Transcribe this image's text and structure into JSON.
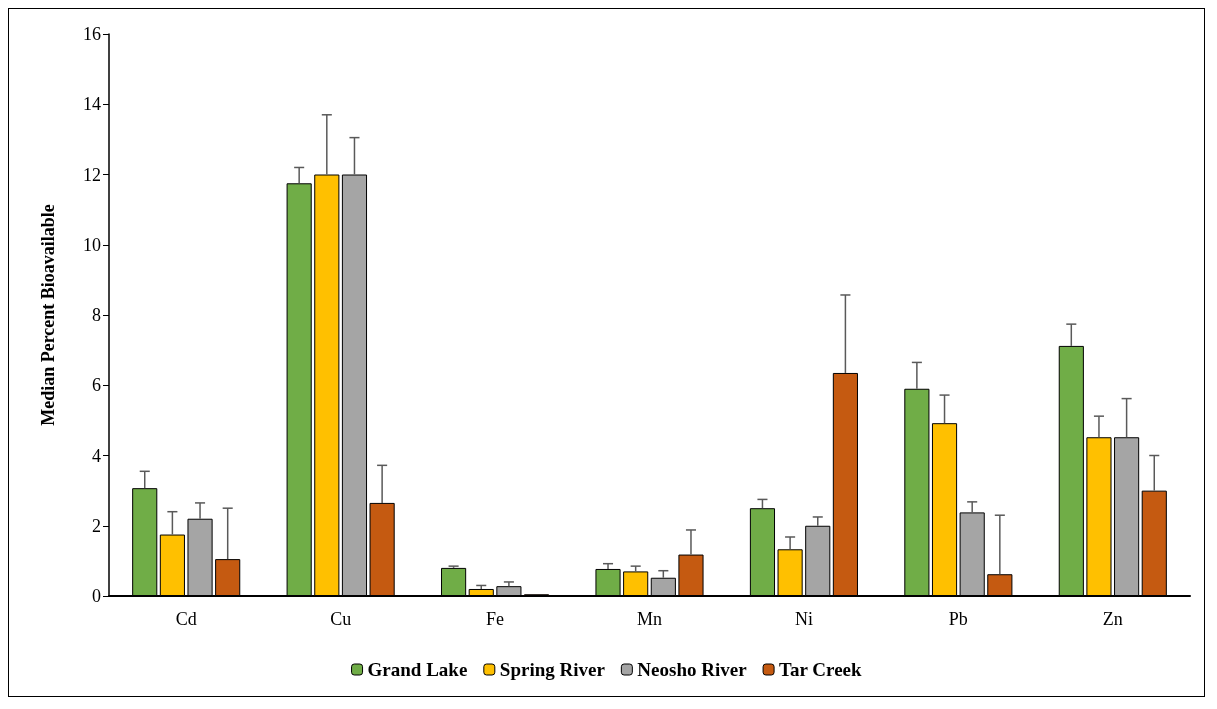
{
  "chart_data": {
    "type": "bar",
    "ylabel": "Median Percent Bioavailable",
    "categories": [
      "Cd",
      "Cu",
      "Fe",
      "Mn",
      "Ni",
      "Pb",
      "Zn"
    ],
    "ylim": [
      0,
      16
    ],
    "yticks": [
      0,
      2,
      4,
      6,
      8,
      10,
      12,
      14,
      16
    ],
    "grid": false,
    "legend": "bottom",
    "series": [
      {
        "name": "Grand Lake",
        "color": "#70ad47",
        "values": [
          3.07,
          11.75,
          0.8,
          0.77,
          2.5,
          5.9,
          7.12
        ],
        "errors": [
          [
            3.07,
            3.55
          ],
          [
            11.75,
            12.2
          ],
          [
            0.8,
            0.85
          ],
          [
            0.77,
            0.92
          ],
          [
            2.5,
            2.75
          ],
          [
            5.9,
            6.65
          ],
          [
            7.12,
            7.74
          ]
        ]
      },
      {
        "name": "Spring River",
        "color": "#ffc000",
        "values": [
          1.75,
          12.0,
          0.2,
          0.7,
          1.33,
          4.92,
          4.52
        ],
        "errors": [
          [
            1.75,
            2.4
          ],
          [
            12.0,
            13.7
          ],
          [
            0.2,
            0.3
          ],
          [
            0.7,
            0.85
          ],
          [
            1.33,
            1.68
          ],
          [
            4.92,
            5.72
          ],
          [
            4.52,
            5.12
          ]
        ]
      },
      {
        "name": "Neosho River",
        "color": "#a5a5a5",
        "values": [
          2.2,
          12.0,
          0.28,
          0.52,
          2.0,
          2.38,
          4.52
        ],
        "errors": [
          [
            2.2,
            2.65
          ],
          [
            12.0,
            13.05
          ],
          [
            0.28,
            0.4
          ],
          [
            0.52,
            0.72
          ],
          [
            2.0,
            2.25
          ],
          [
            2.38,
            2.68
          ],
          [
            4.52,
            5.62
          ]
        ]
      },
      {
        "name": "Tar Creek",
        "color": "#c55a11",
        "values": [
          1.05,
          2.65,
          0.05,
          1.18,
          6.35,
          0.62,
          3.0
        ],
        "errors": [
          [
            1.05,
            2.5
          ],
          [
            2.65,
            3.72
          ],
          null,
          [
            1.18,
            1.88
          ],
          [
            6.35,
            8.57
          ],
          [
            0.62,
            2.3
          ],
          [
            3.0,
            4.0
          ]
        ]
      }
    ]
  }
}
